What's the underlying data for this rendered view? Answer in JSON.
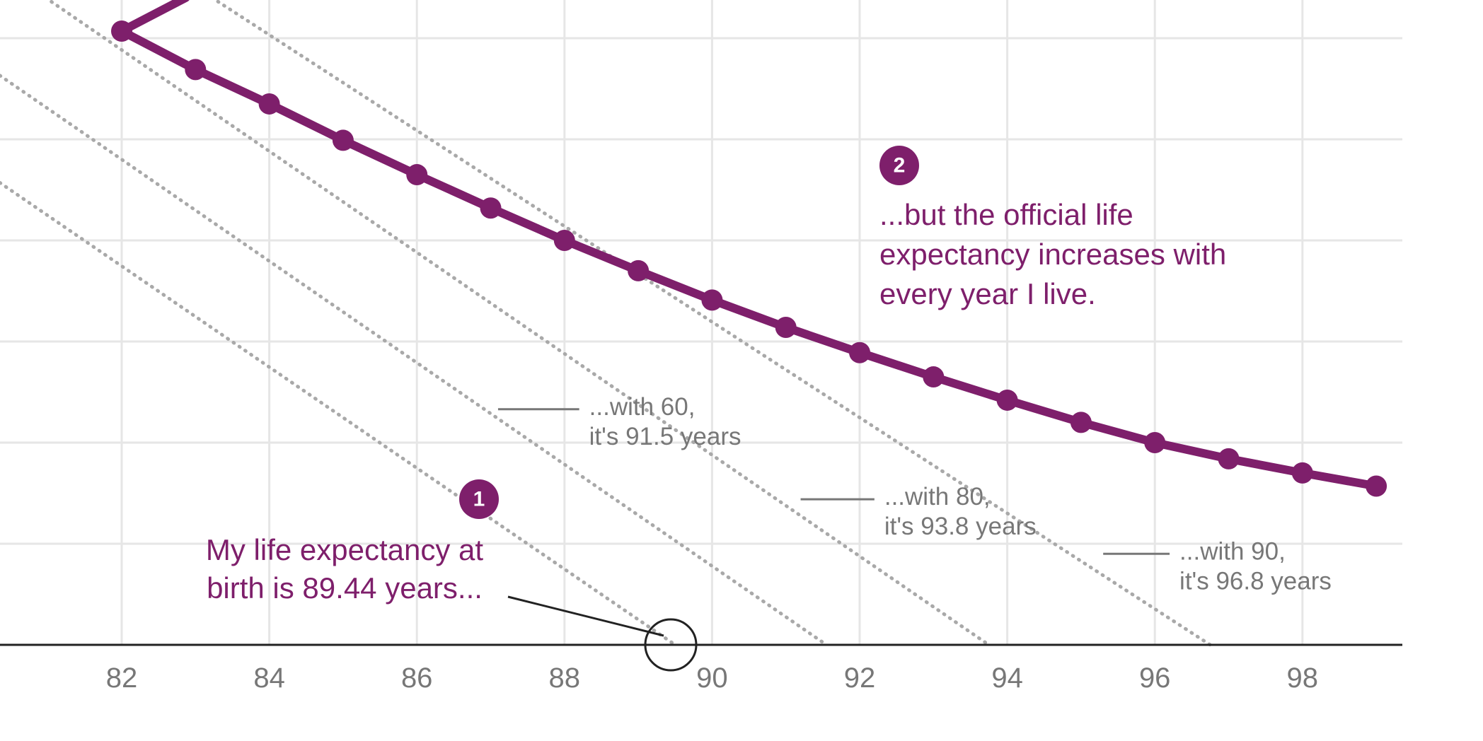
{
  "chart_data": {
    "type": "line",
    "title": "",
    "xlabel": "",
    "ylabel": "",
    "x_ticks": [
      82,
      84,
      86,
      88,
      90,
      92,
      94,
      96,
      98
    ],
    "xlim": [
      80.35,
      99.3
    ],
    "ylim": [
      0,
      6.4
    ],
    "grid": true,
    "colors": {
      "main": "#7e1f6b",
      "dotted": "#a9a9a9",
      "label": "#777777"
    },
    "series": [
      {
        "name": "",
        "style": "solid-with-dots",
        "x": [
          82,
          83,
          84,
          85,
          86,
          87,
          88,
          89,
          90,
          91,
          92,
          93,
          94,
          95,
          96,
          97,
          98,
          99
        ],
        "y": [
          6.07,
          5.69,
          5.35,
          4.99,
          4.65,
          4.32,
          4.0,
          3.7,
          3.41,
          3.14,
          2.89,
          2.65,
          2.42,
          2.2,
          2.0,
          1.84,
          1.7,
          1.57
        ]
      }
    ],
    "reference_lines": [
      {
        "x": [
          80.35,
          89.5
        ],
        "y": [
          4.57,
          0
        ]
      },
      {
        "x": [
          80.35,
          91.55
        ],
        "y": [
          5.63,
          0
        ]
      },
      {
        "x": [
          80.35,
          93.75
        ],
        "y": [
          6.71,
          0
        ]
      },
      {
        "x": [
          80.35,
          96.75
        ],
        "y": [
          7.76,
          0
        ]
      }
    ],
    "annotations": [
      {
        "id": "label60",
        "lines": [
          "...with 60,",
          "it's 91.5 years"
        ],
        "leader_x": [
          87.1,
          88.2
        ],
        "y": 2.33
      },
      {
        "id": "label80",
        "lines": [
          "...with 80,",
          "it's 93.8 years"
        ],
        "leader_x": [
          91.2,
          92.2
        ],
        "y": 1.44
      },
      {
        "id": "label90",
        "lines": [
          "...with 90,",
          "it's 96.8 years"
        ],
        "leader_x": [
          95.3,
          96.2
        ],
        "y": 0.9
      }
    ],
    "callouts": [
      {
        "badge": "1",
        "lines": [
          "My life expectancy at",
          "birth is 89.44 years..."
        ],
        "marker_x": 89.44
      },
      {
        "badge": "2",
        "lines": [
          "...but the official life",
          "expectancy increases with",
          "every year I live."
        ]
      }
    ]
  }
}
